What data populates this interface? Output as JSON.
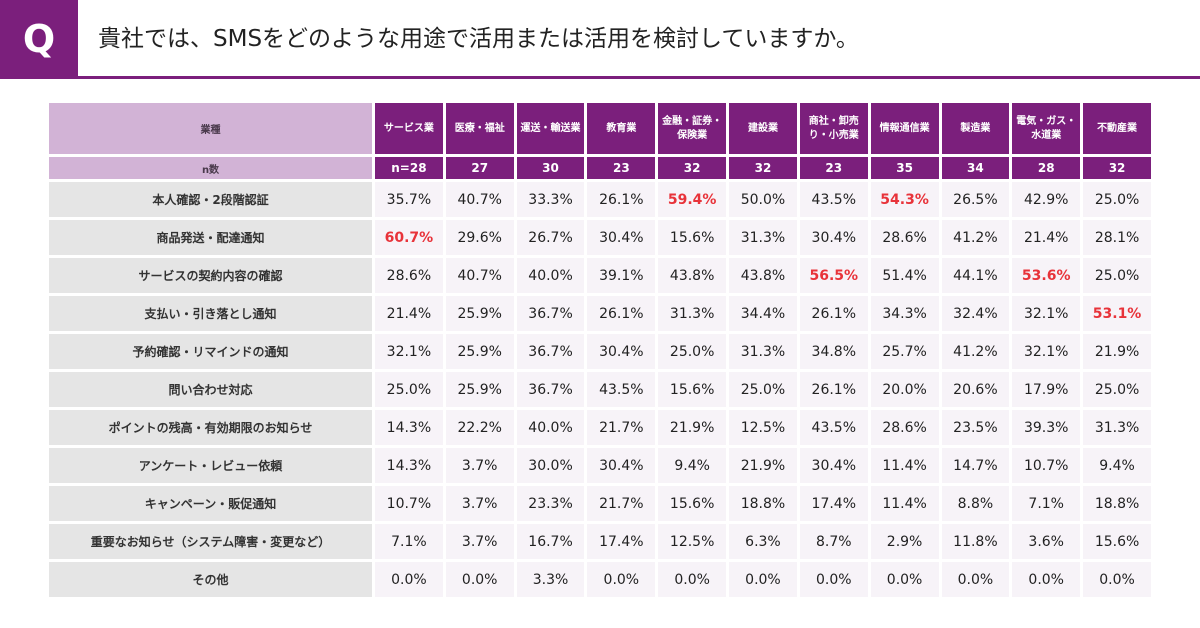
{
  "header": {
    "badge": "Q",
    "title": "貴社では、SMSをどのような用途で活用または活用を検討していますか。"
  },
  "colors": {
    "accent": "#7b1f7c",
    "label_bg": "#d2b3d6",
    "highlight": "#e8333a"
  },
  "chart_data": {
    "type": "table",
    "corner_label": "業種",
    "n_label": "n数",
    "columns": [
      {
        "label": "サービス業",
        "n": "n=28"
      },
      {
        "label": "医療・福祉",
        "n": "27"
      },
      {
        "label": "運送・輸送業",
        "n": "30"
      },
      {
        "label": "教育業",
        "n": "23"
      },
      {
        "label": "金融・証券・保険業",
        "n": "32"
      },
      {
        "label": "建設業",
        "n": "32"
      },
      {
        "label": "商社・卸売り・小売業",
        "n": "23"
      },
      {
        "label": "情報通信業",
        "n": "35"
      },
      {
        "label": "製造業",
        "n": "34"
      },
      {
        "label": "電気・ガス・水道業",
        "n": "28"
      },
      {
        "label": "不動産業",
        "n": "32"
      }
    ],
    "rows": [
      {
        "label": "本人確認・2段階認証",
        "values": [
          "35.7%",
          "40.7%",
          "33.3%",
          "26.1%",
          "59.4%",
          "50.0%",
          "43.5%",
          "54.3%",
          "26.5%",
          "42.9%",
          "25.0%"
        ],
        "highlight": [
          4,
          7
        ]
      },
      {
        "label": "商品発送・配達通知",
        "values": [
          "60.7%",
          "29.6%",
          "26.7%",
          "30.4%",
          "15.6%",
          "31.3%",
          "30.4%",
          "28.6%",
          "41.2%",
          "21.4%",
          "28.1%"
        ],
        "highlight": [
          0
        ]
      },
      {
        "label": "サービスの契約内容の確認",
        "values": [
          "28.6%",
          "40.7%",
          "40.0%",
          "39.1%",
          "43.8%",
          "43.8%",
          "56.5%",
          "51.4%",
          "44.1%",
          "53.6%",
          "25.0%"
        ],
        "highlight": [
          6,
          9
        ]
      },
      {
        "label": "支払い・引き落とし通知",
        "values": [
          "21.4%",
          "25.9%",
          "36.7%",
          "26.1%",
          "31.3%",
          "34.4%",
          "26.1%",
          "34.3%",
          "32.4%",
          "32.1%",
          "53.1%"
        ],
        "highlight": [
          10
        ]
      },
      {
        "label": "予約確認・リマインドの通知",
        "values": [
          "32.1%",
          "25.9%",
          "36.7%",
          "30.4%",
          "25.0%",
          "31.3%",
          "34.8%",
          "25.7%",
          "41.2%",
          "32.1%",
          "21.9%"
        ],
        "highlight": []
      },
      {
        "label": "問い合わせ対応",
        "values": [
          "25.0%",
          "25.9%",
          "36.7%",
          "43.5%",
          "15.6%",
          "25.0%",
          "26.1%",
          "20.0%",
          "20.6%",
          "17.9%",
          "25.0%"
        ],
        "highlight": []
      },
      {
        "label": "ポイントの残高・有効期限のお知らせ",
        "values": [
          "14.3%",
          "22.2%",
          "40.0%",
          "21.7%",
          "21.9%",
          "12.5%",
          "43.5%",
          "28.6%",
          "23.5%",
          "39.3%",
          "31.3%"
        ],
        "highlight": []
      },
      {
        "label": "アンケート・レビュー依頼",
        "values": [
          "14.3%",
          "3.7%",
          "30.0%",
          "30.4%",
          "9.4%",
          "21.9%",
          "30.4%",
          "11.4%",
          "14.7%",
          "10.7%",
          "9.4%"
        ],
        "highlight": []
      },
      {
        "label": "キャンペーン・販促通知",
        "values": [
          "10.7%",
          "3.7%",
          "23.3%",
          "21.7%",
          "15.6%",
          "18.8%",
          "17.4%",
          "11.4%",
          "8.8%",
          "7.1%",
          "18.8%"
        ],
        "highlight": []
      },
      {
        "label": "重要なお知らせ（システム障害・変更など）",
        "values": [
          "7.1%",
          "3.7%",
          "16.7%",
          "17.4%",
          "12.5%",
          "6.3%",
          "8.7%",
          "2.9%",
          "11.8%",
          "3.6%",
          "15.6%"
        ],
        "highlight": []
      },
      {
        "label": "その他",
        "values": [
          "0.0%",
          "0.0%",
          "3.3%",
          "0.0%",
          "0.0%",
          "0.0%",
          "0.0%",
          "0.0%",
          "0.0%",
          "0.0%",
          "0.0%"
        ],
        "highlight": []
      }
    ]
  }
}
